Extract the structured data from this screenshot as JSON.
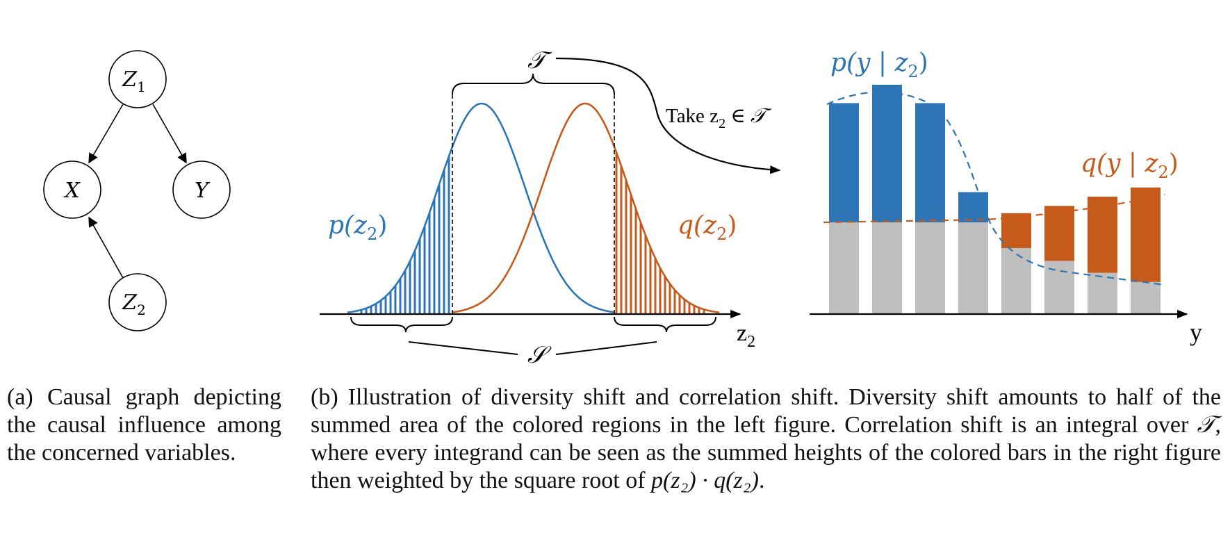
{
  "graph": {
    "nodes": [
      {
        "id": "z1",
        "label": "Z",
        "sub": "1"
      },
      {
        "id": "x",
        "label": "X",
        "sub": ""
      },
      {
        "id": "y",
        "label": "Y",
        "sub": ""
      },
      {
        "id": "z2",
        "label": "Z",
        "sub": "2"
      }
    ],
    "edges": [
      [
        "z1",
        "x"
      ],
      [
        "z1",
        "y"
      ],
      [
        "z2",
        "x"
      ]
    ]
  },
  "left_panel": {
    "T_label": "𝒯",
    "S_label": "𝒮",
    "axis_label": "z",
    "axis_sub": "2",
    "p_label": "p(z",
    "p_close": ")",
    "q_label": "q(z",
    "q_close": ")",
    "take_text": "Take z",
    "take_sub": "2",
    "take_suffix": " ∈ 𝒯"
  },
  "right_panel": {
    "axis_label": "y",
    "p_label": "p(y | z",
    "p_close": ")",
    "q_label": "q(y | z",
    "q_close": ")",
    "sub": "2"
  },
  "colors": {
    "blue": "#2e75b6",
    "orange": "#c55a1b",
    "gray": "#bfbfbf",
    "black": "#000000"
  },
  "chart_data": {
    "type": "bar",
    "gray_base": [
      1.0,
      1.0,
      1.0,
      1.0,
      0.72,
      0.58,
      0.45,
      0.35
    ],
    "blue_top": [
      2.3,
      2.5,
      2.3,
      1.33,
      null,
      null,
      null,
      null
    ],
    "orange_top": [
      null,
      null,
      null,
      null,
      1.1,
      1.18,
      1.28,
      1.38
    ]
  },
  "captions": {
    "a": "(a) Causal graph depicting the causal influence among the concerned variables.",
    "b_part1": "(b) Illustration of diversity shift and correlation shift. Diversity shift amounts to half of the summed area of the colored regions in the left figure. Correlation shift is an integral over ",
    "b_T": "𝒯",
    "b_part2": ", where every integrand can be seen as the summed heights of the colored bars in the right figure then weighted by the square root of ",
    "b_formula": "p(z₂) · q(z₂)",
    "b_end": "."
  }
}
